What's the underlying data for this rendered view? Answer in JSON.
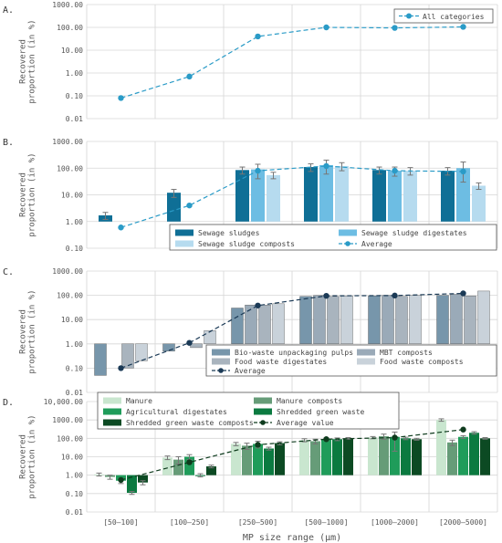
{
  "colors": {
    "A": {
      "line": "#2a9bc7",
      "marker": "#2a9bc7"
    },
    "B": {
      "series": [
        "#0f6f96",
        "#6dbde3",
        "#b6dbef"
      ],
      "avg": "#2a9bc7",
      "bar_edge": "none"
    },
    "C": {
      "series": [
        "#7796ab",
        "#9aaab8",
        "#a9b4be",
        "#c9d2da"
      ],
      "avg": "#1b3a56",
      "bar_edge": "#555555"
    },
    "D": {
      "series": [
        "#c9e6cf",
        "#669c78",
        "#1f9c5a",
        "#0b7a40",
        "#0c4a23"
      ],
      "avg": "#0e3b1d",
      "bar_edge": "none"
    },
    "grid": "#d6d6d6",
    "error": "#777777"
  },
  "chart_data": [
    {
      "panel_label": "A.",
      "type": "line",
      "scale": "log",
      "ylabel": "Recovered proportion (in %)",
      "ylim": [
        0.01,
        1000
      ],
      "yticks": [
        "0.01",
        "0.10",
        "1.00",
        "10.00",
        "100.00",
        "1000.00"
      ],
      "series": [
        {
          "name": "All categories",
          "kind": "average",
          "values": [
            0.08,
            0.7,
            40,
            100,
            95,
            105
          ]
        }
      ],
      "legend": {
        "placement": "top-right",
        "columns": 1
      }
    },
    {
      "panel_label": "B.",
      "type": "bar",
      "scale": "log",
      "ylabel": "Recovered proportion (in %)",
      "ylim": [
        0.1,
        1000
      ],
      "yticks": [
        "0.10",
        "1.00",
        "10.00",
        "100.00",
        "1000.00"
      ],
      "series": [
        {
          "name": "Sewage sludges",
          "values": [
            1.7,
            12,
            85,
            110,
            85,
            80
          ],
          "err": [
            0.5,
            4,
            25,
            35,
            25,
            25
          ]
        },
        {
          "name": "Sewage sludge digestates",
          "values": [
            null,
            null,
            90,
            130,
            80,
            100
          ],
          "err": [
            null,
            null,
            50,
            70,
            30,
            70
          ]
        },
        {
          "name": "Sewage sludge composts",
          "values": [
            null,
            null,
            55,
            120,
            80,
            22
          ],
          "err": [
            null,
            null,
            15,
            40,
            25,
            6
          ]
        },
        {
          "name": "Average",
          "kind": "average",
          "values": [
            0.6,
            4,
            80,
            120,
            80,
            75
          ]
        }
      ],
      "legend": {
        "placement": "bottom-right",
        "columns": 2
      }
    },
    {
      "panel_label": "C.",
      "type": "bar",
      "scale": "log",
      "ylabel": "Recovered proportion (in %)",
      "ylim": [
        0.01,
        1000
      ],
      "yticks": [
        "0.01",
        "0.10",
        "1.00",
        "10.00",
        "100.00",
        "1000.00"
      ],
      "series": [
        {
          "name": "Bio-waste unpackaging pulps",
          "values": [
            0.05,
            0.5,
            30,
            90,
            95,
            100
          ]
        },
        {
          "name": "MBT composts",
          "values": [
            null,
            null,
            40,
            100,
            100,
            110
          ]
        },
        {
          "name": "Food waste digestates",
          "values": [
            0.1,
            0.7,
            40,
            90,
            90,
            95
          ]
        },
        {
          "name": "Food waste composts",
          "values": [
            0.2,
            3.5,
            45,
            95,
            100,
            150
          ]
        },
        {
          "name": "Average",
          "kind": "average",
          "values": [
            0.1,
            1.1,
            38,
            95,
            98,
            120
          ]
        }
      ],
      "legend": {
        "placement": "bottom-right",
        "columns": 2
      }
    },
    {
      "panel_label": "D.",
      "type": "bar",
      "scale": "log",
      "ylabel": "Recovered proportion (in %)",
      "ylim": [
        0.01,
        10000
      ],
      "yticks": [
        "0.01",
        "0.10",
        "1.00",
        "10.00",
        "100.00",
        "1000.00",
        "10,000.00"
      ],
      "xlabel": "MP size range (µm)",
      "categories": [
        "[50–100]",
        "[100–250]",
        "[250–500]",
        "[500–1000]",
        "[1000–2000]",
        "[2000–5000]"
      ],
      "series": [
        {
          "name": "Manure",
          "values": [
            1.1,
            9,
            50,
            80,
            110,
            1000
          ],
          "err": [
            0.2,
            2,
            10,
            15,
            15,
            150
          ]
        },
        {
          "name": "Manure composts",
          "values": [
            0.8,
            7,
            40,
            70,
            130,
            60
          ],
          "err": [
            0.2,
            3,
            15,
            20,
            40,
            20
          ]
        },
        {
          "name": "Agricultural digestates",
          "values": [
            0.5,
            10,
            50,
            90,
            120,
            120
          ],
          "err": [
            0.15,
            3,
            20,
            15,
            100,
            20
          ]
        },
        {
          "name": "Shredded green waste",
          "values": [
            0.11,
            1,
            28,
            90,
            100,
            200
          ],
          "err": [
            0.02,
            0.2,
            5,
            15,
            15,
            30
          ]
        },
        {
          "name": "Shredded green waste composts",
          "values": [
            0.4,
            3,
            55,
            100,
            90,
            100
          ],
          "err": [
            0.1,
            0.5,
            10,
            10,
            10,
            10
          ]
        },
        {
          "name": "Average value",
          "kind": "average",
          "values": [
            0.55,
            5,
            45,
            90,
            110,
            300
          ]
        }
      ],
      "legend": {
        "placement": "top-left",
        "columns": 2
      }
    }
  ]
}
